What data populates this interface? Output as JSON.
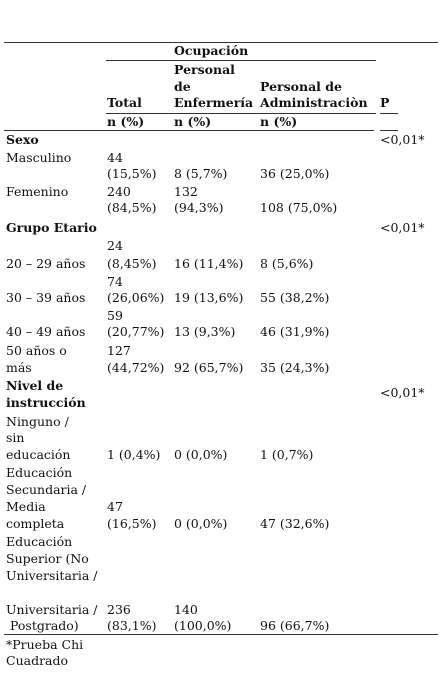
{
  "header": {
    "group": "Ocupación",
    "cols": [
      {
        "l1": "",
        "l2": "",
        "l3": "Total",
        "sub": "n (%)"
      },
      {
        "l1": "Personal",
        "l2": "de",
        "l3": "Enfermería",
        "sub": "n (%)"
      },
      {
        "l1": "",
        "l2": "Personal de",
        "l3": "Administraciòn",
        "sub": "n (%)"
      },
      {
        "l1": "",
        "l2": "",
        "l3": "P",
        "sub": ""
      }
    ]
  },
  "sections": [
    {
      "title": "Sexo",
      "p": "<0,01*",
      "rows": [
        {
          "label": [
            "Masculino"
          ],
          "total": [
            "44",
            "(15,5%)"
          ],
          "enf": [
            "8 (5,7%)"
          ],
          "adm": [
            "36 (25,0%)"
          ]
        },
        {
          "label": [
            "Femenino"
          ],
          "total": [
            "240",
            "(84,5%)"
          ],
          "enf": [
            "132",
            "(94,3%)"
          ],
          "adm": [
            "108 (75,0%)"
          ]
        }
      ]
    },
    {
      "title": "Grupo Etario",
      "p": "<0,01*",
      "rows": [
        {
          "label": [
            "20 – 29 años"
          ],
          "total": [
            "24",
            "(8,45%)"
          ],
          "enf": [
            "16 (11,4%)"
          ],
          "adm": [
            "8 (5,6%)"
          ]
        },
        {
          "label": [
            "30 – 39 años"
          ],
          "total": [
            "74",
            "(26,06%)"
          ],
          "enf": [
            "19 (13,6%)"
          ],
          "adm": [
            "55 (38,2%)"
          ]
        },
        {
          "label": [
            "40 – 49 años"
          ],
          "total": [
            "59",
            "(20,77%)"
          ],
          "enf": [
            "13 (9,3%)"
          ],
          "adm": [
            "46 (31,9%)"
          ]
        },
        {
          "label": [
            "50 años o",
            "más"
          ],
          "total": [
            "127",
            "(44,72%)"
          ],
          "enf": [
            "92 (65,7%)"
          ],
          "adm": [
            "35 (24,3%)"
          ]
        }
      ]
    },
    {
      "title": [
        "Nivel de",
        "instrucción"
      ],
      "p": "<0,01*",
      "rows": [
        {
          "label": [
            "Ninguno /",
            "sin",
            "educación"
          ],
          "total": [
            "1 (0,4%)"
          ],
          "enf": [
            "0 (0,0%)"
          ],
          "adm": [
            "1 (0,7%)"
          ]
        },
        {
          "label": [
            "Educación",
            "Secundaria /",
            "Media",
            "completa"
          ],
          "total": [
            "47",
            "(16,5%)"
          ],
          "enf": [
            "0 (0,0%)"
          ],
          "adm": [
            "47 (32,6%)"
          ]
        },
        {
          "label": [
            "Educación",
            "Superior (No",
            "Universitaria /",
            "",
            "Universitaria /",
            " Postgrado)"
          ],
          "total": [
            "236",
            "(83,1%)"
          ],
          "enf": [
            "140",
            "(100,0%)"
          ],
          "adm": [
            "96 (66,7%)"
          ]
        }
      ]
    }
  ],
  "footnote": [
    "*Prueba Chi",
    "Cuadrado"
  ]
}
